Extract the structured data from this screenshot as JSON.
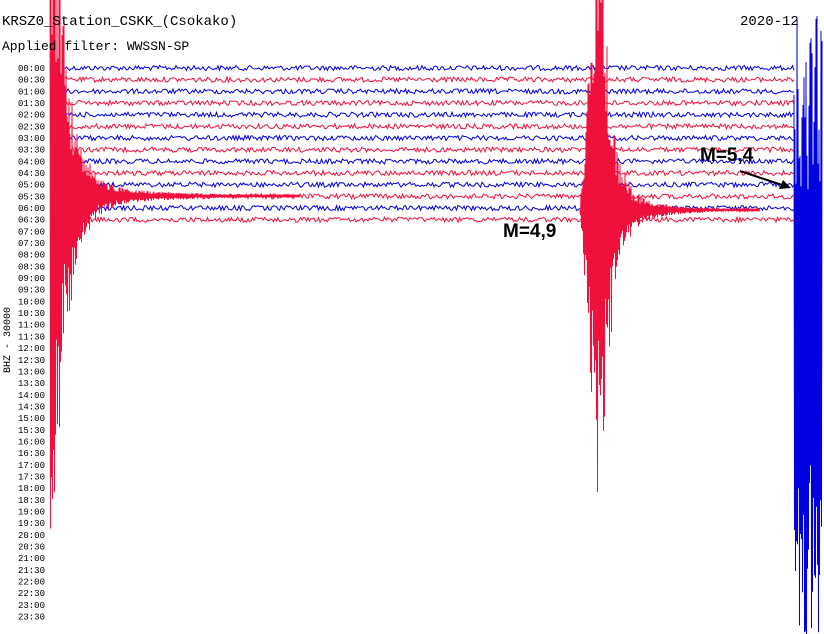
{
  "header": {
    "title": "KRSZ0_Station_CSKK_(Csokako)",
    "date": "2020-12",
    "filter": "Applied filter: WWSSN-SP"
  },
  "axis_label": "BHZ - 30000",
  "time_labels": [
    "00:00",
    "00:30",
    "01:00",
    "01:30",
    "02:00",
    "02:30",
    "03:00",
    "03:30",
    "04:00",
    "04:30",
    "05:00",
    "05:30",
    "06:00",
    "06:30",
    "07:00",
    "07:30",
    "08:00",
    "08:30",
    "09:00",
    "09:30",
    "10:00",
    "10:30",
    "11:00",
    "11:30",
    "12:00",
    "12:30",
    "13:00",
    "13:30",
    "14:00",
    "14:30",
    "15:00",
    "15:30",
    "16:00",
    "16:30",
    "17:00",
    "17:30",
    "18:00",
    "18:30",
    "19:00",
    "19:30",
    "20:00",
    "20:30",
    "21:00",
    "21:30",
    "22:00",
    "22:30",
    "23:00",
    "23:30"
  ],
  "annotations": [
    "M=4,9",
    "M=5,4"
  ]
}
